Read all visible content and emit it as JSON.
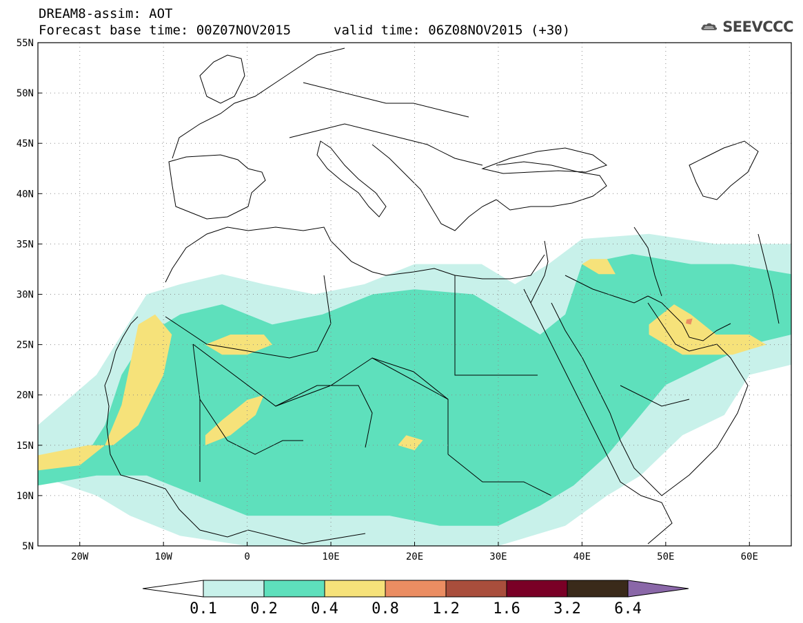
{
  "header": {
    "title": "DREAM8-assim: AOT",
    "base_time": "Forecast base time: 00Z07NOV2015",
    "valid_time": "valid time: 06Z08NOV2015 (+30)",
    "logo_text": "SEEVCCC",
    "logo_icon": "cloud-icon"
  },
  "map": {
    "lon_range": [
      -25,
      65
    ],
    "lat_range": [
      5,
      55
    ],
    "grid": "dotted",
    "lon_ticks": [
      {
        "value": -20,
        "label": "20W"
      },
      {
        "value": -10,
        "label": "10W"
      },
      {
        "value": 0,
        "label": "0"
      },
      {
        "value": 10,
        "label": "10E"
      },
      {
        "value": 20,
        "label": "20E"
      },
      {
        "value": 30,
        "label": "30E"
      },
      {
        "value": 40,
        "label": "40E"
      },
      {
        "value": 50,
        "label": "50E"
      },
      {
        "value": 60,
        "label": "60E"
      }
    ],
    "lat_ticks": [
      {
        "value": 55,
        "label": "55N"
      },
      {
        "value": 50,
        "label": "50N"
      },
      {
        "value": 45,
        "label": "45N"
      },
      {
        "value": 40,
        "label": "40N"
      },
      {
        "value": 35,
        "label": "35N"
      },
      {
        "value": 30,
        "label": "30N"
      },
      {
        "value": 25,
        "label": "25N"
      },
      {
        "value": 20,
        "label": "20N"
      },
      {
        "value": 15,
        "label": "15N"
      },
      {
        "value": 10,
        "label": "10N"
      },
      {
        "value": 5,
        "label": "5N"
      }
    ]
  },
  "colorbar": {
    "labels": [
      "0.1",
      "0.2",
      "0.4",
      "0.8",
      "1.2",
      "1.6",
      "3.2",
      "6.4"
    ],
    "colors": [
      "#ffffff",
      "#c8f1ea",
      "#5ee0bc",
      "#f6e27a",
      "#eb8d62",
      "#a94e3c",
      "#7a0026",
      "#3a2a1a",
      "#8a67a8"
    ]
  },
  "aot_fields": {
    "levels": [
      0.1,
      0.2,
      0.4,
      0.8,
      1.6
    ],
    "fill_colors": [
      "#c8f1ea",
      "#5ee0bc",
      "#f6e27a",
      "#eb8d62"
    ],
    "regions": [
      {
        "level": 0.1,
        "lonlat": [
          [
            -25,
            17
          ],
          [
            -18,
            22
          ],
          [
            -15,
            26
          ],
          [
            -12,
            30
          ],
          [
            -8,
            31
          ],
          [
            -3,
            32
          ],
          [
            2,
            31
          ],
          [
            8,
            30
          ],
          [
            14,
            31
          ],
          [
            20,
            33
          ],
          [
            28,
            33
          ],
          [
            32,
            31
          ],
          [
            36,
            33
          ],
          [
            40,
            35.5
          ],
          [
            48,
            36
          ],
          [
            56,
            35
          ],
          [
            65,
            35
          ],
          [
            65,
            23
          ],
          [
            60,
            22
          ],
          [
            57,
            18
          ],
          [
            52,
            16
          ],
          [
            47,
            12
          ],
          [
            43,
            10
          ],
          [
            38,
            7
          ],
          [
            30,
            5
          ],
          [
            20,
            5
          ],
          [
            10,
            5
          ],
          [
            0,
            5
          ],
          [
            -8,
            6
          ],
          [
            -14,
            8
          ],
          [
            -18,
            10
          ],
          [
            -25,
            12
          ]
        ]
      },
      {
        "level": 0.2,
        "lonlat": [
          [
            -25,
            13
          ],
          [
            -20,
            13
          ],
          [
            -17,
            17
          ],
          [
            -15,
            22
          ],
          [
            -12,
            26
          ],
          [
            -8,
            28
          ],
          [
            -3,
            29
          ],
          [
            3,
            27
          ],
          [
            9,
            28
          ],
          [
            15,
            30
          ],
          [
            20,
            30.5
          ],
          [
            27,
            30
          ],
          [
            31,
            28
          ],
          [
            35,
            26
          ],
          [
            38,
            28
          ],
          [
            40,
            33
          ],
          [
            46,
            34
          ],
          [
            53,
            33
          ],
          [
            58,
            33
          ],
          [
            65,
            32
          ],
          [
            65,
            26
          ],
          [
            60,
            25
          ],
          [
            55,
            23
          ],
          [
            50,
            21
          ],
          [
            46,
            17
          ],
          [
            43,
            14
          ],
          [
            39,
            11
          ],
          [
            35,
            9
          ],
          [
            30,
            7
          ],
          [
            23,
            7
          ],
          [
            17,
            8
          ],
          [
            10,
            8
          ],
          [
            5,
            8
          ],
          [
            0,
            8
          ],
          [
            -6,
            10
          ],
          [
            -12,
            12
          ],
          [
            -18,
            12
          ],
          [
            -25,
            11
          ]
        ]
      },
      {
        "level": 0.4,
        "lonlat": [
          [
            -25,
            12.5
          ],
          [
            -20,
            13
          ],
          [
            -17,
            15
          ],
          [
            -15,
            19
          ],
          [
            -14,
            23
          ],
          [
            -13,
            27
          ],
          [
            -11,
            28
          ],
          [
            -9,
            26
          ],
          [
            -10,
            22
          ],
          [
            -13,
            17
          ],
          [
            -16,
            15
          ],
          [
            -19,
            15
          ],
          [
            -22,
            14.5
          ],
          [
            -25,
            14
          ]
        ]
      },
      {
        "level": 0.4,
        "lonlat": [
          [
            -5,
            15
          ],
          [
            -2,
            16
          ],
          [
            1,
            18
          ],
          [
            2,
            20
          ],
          [
            0,
            19.5
          ],
          [
            -3,
            17.5
          ],
          [
            -5,
            16
          ]
        ]
      },
      {
        "level": 0.4,
        "lonlat": [
          [
            -5,
            25
          ],
          [
            -2,
            26
          ],
          [
            2,
            26
          ],
          [
            3,
            25
          ],
          [
            0,
            24
          ],
          [
            -3,
            24
          ]
        ]
      },
      {
        "level": 0.4,
        "lonlat": [
          [
            48,
            27
          ],
          [
            51,
            29
          ],
          [
            53,
            28
          ],
          [
            56,
            26
          ],
          [
            60,
            26
          ],
          [
            62,
            25
          ],
          [
            58,
            24
          ],
          [
            55,
            24
          ],
          [
            52,
            24
          ],
          [
            50,
            25
          ],
          [
            48,
            26
          ]
        ]
      },
      {
        "level": 0.4,
        "lonlat": [
          [
            40,
            33
          ],
          [
            42,
            32
          ],
          [
            44,
            32
          ],
          [
            43,
            33.5
          ],
          [
            41,
            33.5
          ]
        ]
      },
      {
        "level": 0.4,
        "lonlat": [
          [
            18,
            15
          ],
          [
            20,
            14.5
          ],
          [
            21,
            15.5
          ],
          [
            19,
            16
          ]
        ]
      },
      {
        "level": 0.8,
        "lonlat": [
          [
            52.5,
            27.5
          ],
          [
            53.2,
            27.6
          ],
          [
            53,
            27
          ],
          [
            52.4,
            27.1
          ]
        ]
      }
    ]
  }
}
